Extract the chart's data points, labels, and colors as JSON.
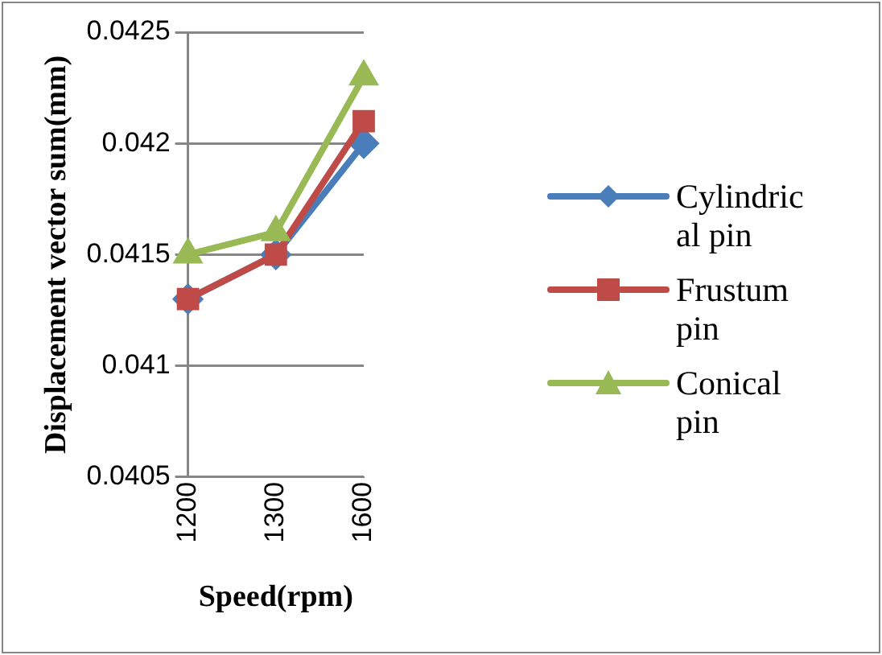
{
  "chart_data": {
    "type": "line",
    "xlabel": "Speed(rpm)",
    "ylabel": "Displacement vector sum(mm)",
    "categories": [
      "1200",
      "1300",
      "1600"
    ],
    "series": [
      {
        "name": "Cylindrical pin",
        "color": "#4a7ebb",
        "marker": "diamond",
        "values": [
          0.0413,
          0.0415,
          0.042
        ]
      },
      {
        "name": "Frustum pin",
        "color": "#be4b48",
        "marker": "square",
        "values": [
          0.0413,
          0.0415,
          0.0421
        ]
      },
      {
        "name": "Conical pin",
        "color": "#98b954",
        "marker": "triangle",
        "values": [
          0.0415,
          0.0416,
          0.0423
        ]
      }
    ],
    "ylim": [
      0.0405,
      0.0425
    ],
    "yticks": [
      0.0405,
      0.041,
      0.0415,
      0.042,
      0.0425
    ],
    "grid": "y",
    "legend": "right"
  }
}
